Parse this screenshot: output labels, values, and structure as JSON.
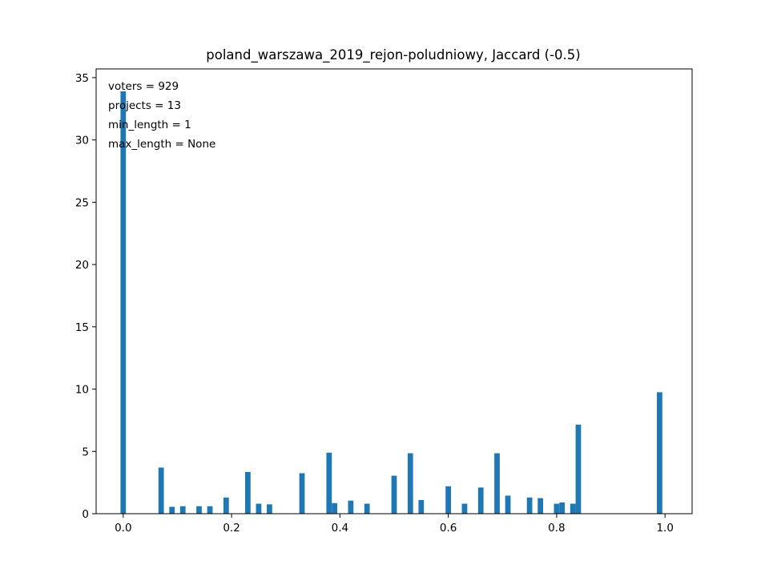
{
  "chart_data": {
    "type": "bar",
    "title": "poland_warszawa_2019_rejon-poludniowy, Jaccard (-0.5)",
    "xlabel": "",
    "ylabel": "",
    "xlim": [
      -0.05,
      1.05
    ],
    "ylim": [
      0,
      35.7
    ],
    "bin_width": 0.01,
    "bar_color": "#1f77b4",
    "grid": false,
    "x_ticks": [
      0.0,
      0.2,
      0.4,
      0.6,
      0.8,
      1.0
    ],
    "x_tick_labels": [
      "0.0",
      "0.2",
      "0.4",
      "0.6",
      "0.8",
      "1.0"
    ],
    "y_ticks": [
      0,
      5,
      10,
      15,
      20,
      25,
      30,
      35
    ],
    "y_tick_labels": [
      "0",
      "5",
      "10",
      "15",
      "20",
      "25",
      "30",
      "35"
    ],
    "annotations": [
      "voters = 929",
      "projects = 13",
      "min_length = 1",
      "max_length = None"
    ],
    "bars": [
      {
        "x": 0.0,
        "y": 33.9
      },
      {
        "x": 0.07,
        "y": 3.7
      },
      {
        "x": 0.09,
        "y": 0.55
      },
      {
        "x": 0.11,
        "y": 0.6
      },
      {
        "x": 0.14,
        "y": 0.6
      },
      {
        "x": 0.16,
        "y": 0.6
      },
      {
        "x": 0.19,
        "y": 1.3
      },
      {
        "x": 0.23,
        "y": 3.35
      },
      {
        "x": 0.25,
        "y": 0.8
      },
      {
        "x": 0.27,
        "y": 0.75
      },
      {
        "x": 0.33,
        "y": 3.25
      },
      {
        "x": 0.38,
        "y": 4.9
      },
      {
        "x": 0.39,
        "y": 0.85
      },
      {
        "x": 0.42,
        "y": 1.05
      },
      {
        "x": 0.45,
        "y": 0.8
      },
      {
        "x": 0.5,
        "y": 3.05
      },
      {
        "x": 0.53,
        "y": 4.85
      },
      {
        "x": 0.55,
        "y": 1.1
      },
      {
        "x": 0.6,
        "y": 2.2
      },
      {
        "x": 0.63,
        "y": 0.8
      },
      {
        "x": 0.66,
        "y": 2.1
      },
      {
        "x": 0.69,
        "y": 4.85
      },
      {
        "x": 0.71,
        "y": 1.45
      },
      {
        "x": 0.75,
        "y": 1.3
      },
      {
        "x": 0.77,
        "y": 1.25
      },
      {
        "x": 0.8,
        "y": 0.8
      },
      {
        "x": 0.81,
        "y": 0.9
      },
      {
        "x": 0.83,
        "y": 0.8
      },
      {
        "x": 0.84,
        "y": 7.15
      },
      {
        "x": 0.99,
        "y": 9.75
      }
    ]
  }
}
